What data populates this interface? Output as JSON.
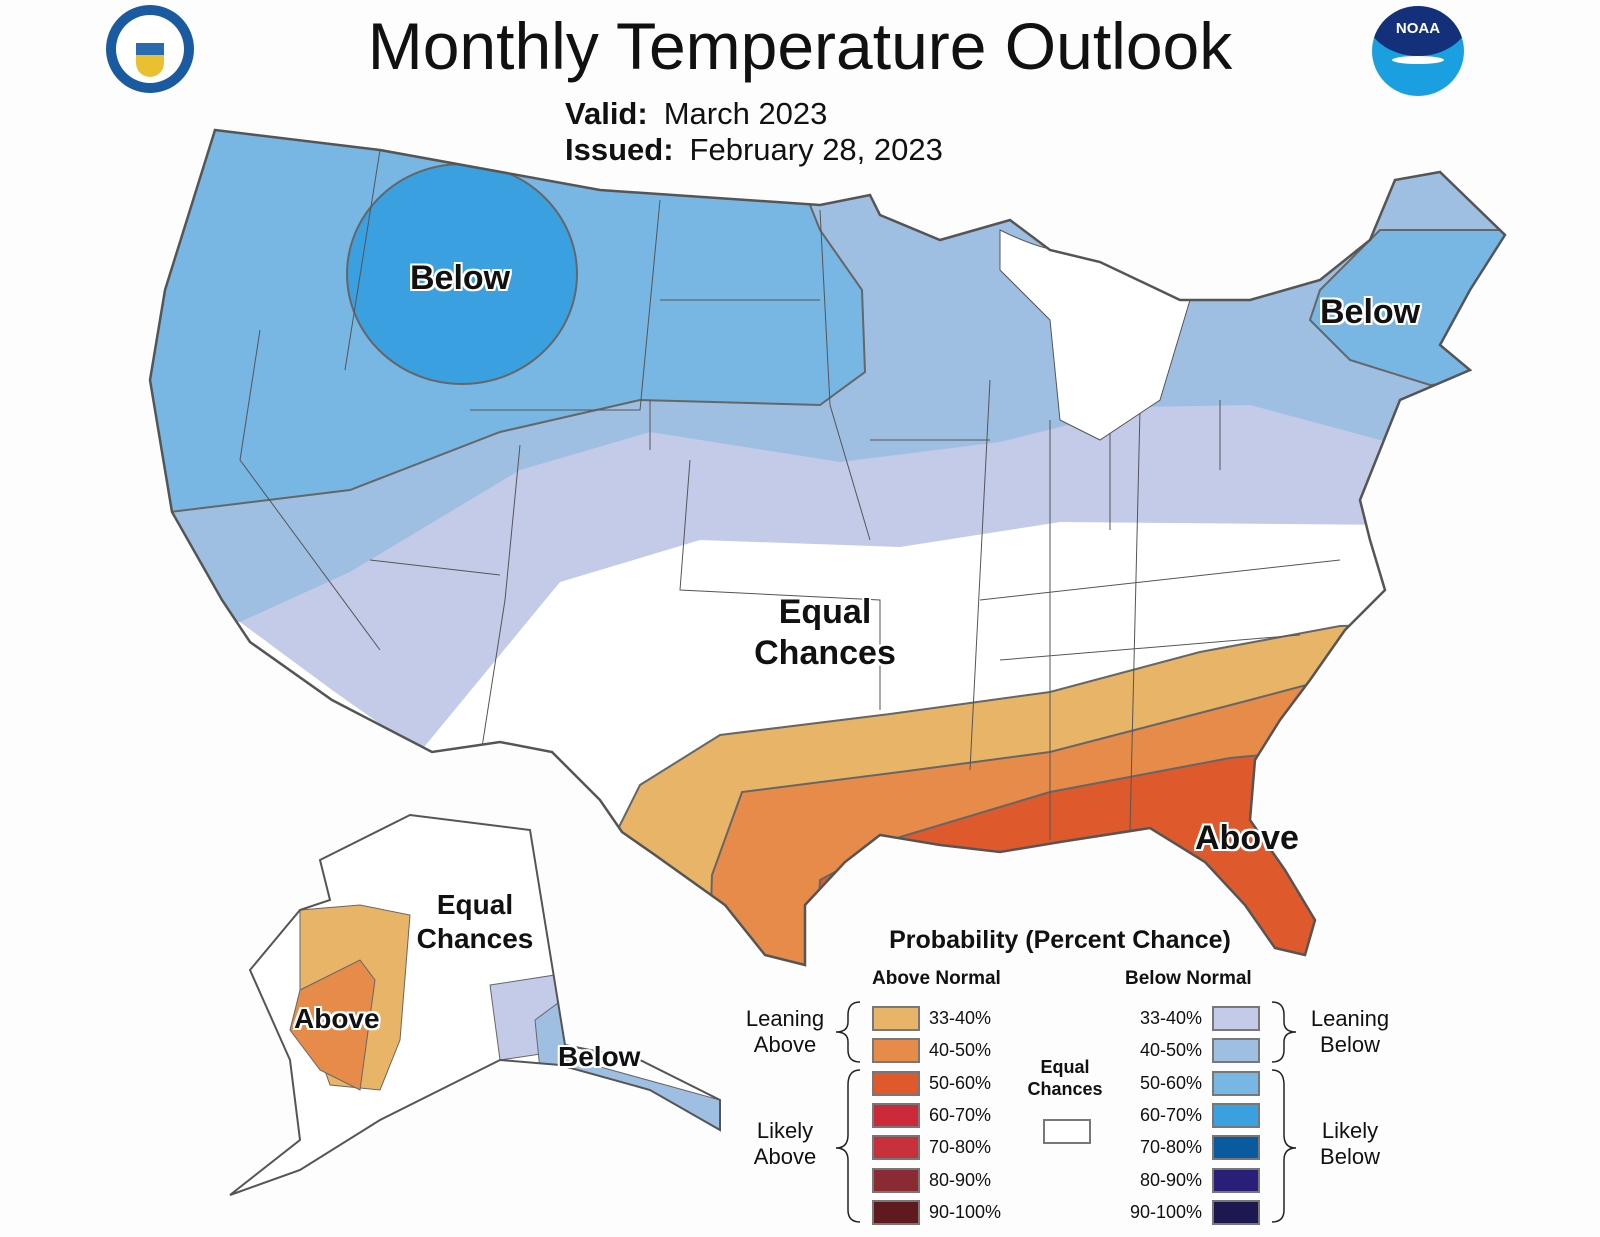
{
  "header": {
    "title": "Monthly Temperature Outlook",
    "valid_label": "Valid:",
    "valid_value": "March 2023",
    "issued_label": "Issued:",
    "issued_value": "February 28, 2023"
  },
  "logos": {
    "left": "Department of Commerce - United States of America",
    "right": "NOAA"
  },
  "map_labels": {
    "below_west": "Below",
    "below_ne": "Below",
    "equal_chances": "Equal Chances",
    "above_se": "Above",
    "ak_equal_chances": "Equal Chances",
    "ak_above": "Above",
    "ak_below": "Below"
  },
  "legend": {
    "title": "Probability (Percent Chance)",
    "above_header": "Above Normal",
    "below_header": "Below Normal",
    "leaning_above": "Leaning Above",
    "likely_above": "Likely Above",
    "leaning_below": "Leaning Below",
    "likely_below": "Likely Below",
    "equal_chances": "Equal Chances",
    "equal_color": "#ffffff",
    "above": [
      {
        "range": "33-40%",
        "color": "#e8b468"
      },
      {
        "range": "40-50%",
        "color": "#e68b4a"
      },
      {
        "range": "50-60%",
        "color": "#de5a2c"
      },
      {
        "range": "60-70%",
        "color": "#cc2a3a"
      },
      {
        "range": "70-80%",
        "color": "#c8303c"
      },
      {
        "range": "80-90%",
        "color": "#8a2a32"
      },
      {
        "range": "90-100%",
        "color": "#5e1a1e"
      }
    ],
    "below": [
      {
        "range": "33-40%",
        "color": "#c3cbe8"
      },
      {
        "range": "40-50%",
        "color": "#9ebfe2"
      },
      {
        "range": "50-60%",
        "color": "#78b6e4"
      },
      {
        "range": "60-70%",
        "color": "#3aa0e0"
      },
      {
        "range": "70-80%",
        "color": "#0a5aa0"
      },
      {
        "range": "80-90%",
        "color": "#2a1f78"
      },
      {
        "range": "90-100%",
        "color": "#1c1850"
      }
    ]
  }
}
